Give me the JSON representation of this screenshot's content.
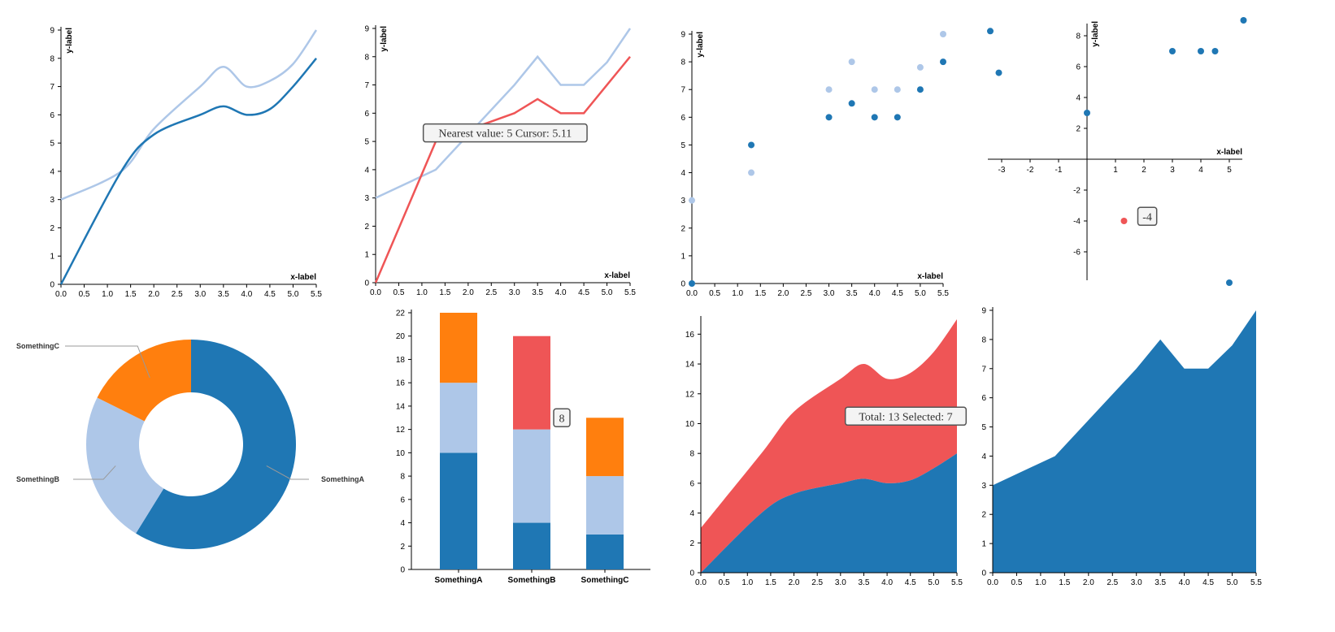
{
  "colors": {
    "dark": "#1f77b4",
    "light": "#aec7e8",
    "red": "#ef5556",
    "orange": "#ff7f0e",
    "grey": "#999999"
  },
  "chart_data": [
    {
      "type": "line",
      "xlabel": "x-label",
      "ylabel": "y-label",
      "xlim": [
        0,
        5.5
      ],
      "ylim": [
        0,
        9
      ],
      "xticks": [
        "0.0",
        "0.5",
        "1.0",
        "1.5",
        "2.0",
        "2.5",
        "3.0",
        "3.5",
        "4.0",
        "4.5",
        "5.0",
        "5.5"
      ],
      "yticks": [
        "0",
        "1",
        "2",
        "3",
        "4",
        "5",
        "6",
        "7",
        "8",
        "9"
      ],
      "curve": "smooth",
      "series": [
        {
          "x": [
            0,
            1.3,
            2.0,
            3.0,
            3.5,
            4.0,
            4.5,
            5.0,
            5.5
          ],
          "y": [
            3,
            4,
            5.5,
            7,
            7.7,
            7.0,
            7.2,
            7.8,
            9
          ],
          "color": "light"
        },
        {
          "x": [
            0,
            1.3,
            2.0,
            3.0,
            3.5,
            4.0,
            4.5,
            5.0,
            5.5
          ],
          "y": [
            0,
            4,
            5.3,
            6.0,
            6.3,
            6.0,
            6.2,
            7.0,
            8
          ],
          "color": "dark"
        }
      ]
    },
    {
      "type": "line",
      "xlabel": "x-label",
      "ylabel": "y-label",
      "xlim": [
        0,
        5.5
      ],
      "ylim": [
        0,
        9
      ],
      "xticks": [
        "0.0",
        "0.5",
        "1.0",
        "1.5",
        "2.0",
        "2.5",
        "3.0",
        "3.5",
        "4.0",
        "4.5",
        "5.0",
        "5.5"
      ],
      "yticks": [
        "0",
        "1",
        "2",
        "3",
        "4",
        "5",
        "6",
        "7",
        "8",
        "9"
      ],
      "curve": "linear",
      "series": [
        {
          "x": [
            0,
            1.3,
            3.0,
            3.5,
            4.0,
            4.5,
            5.0,
            5.5
          ],
          "y": [
            3,
            4,
            7,
            8,
            7,
            7,
            7.8,
            9
          ],
          "color": "light"
        },
        {
          "x": [
            0,
            1.3,
            3.0,
            3.5,
            4.0,
            4.5,
            5.0,
            5.5
          ],
          "y": [
            0,
            5,
            6,
            6.5,
            6,
            6,
            7,
            8
          ],
          "color": "red"
        }
      ],
      "tooltip": {
        "text": "Nearest value: 5 Cursor: 5.11",
        "x": 2.8,
        "y": 5.3
      }
    },
    {
      "type": "scatter",
      "xlabel": "x-label",
      "ylabel": "y-label",
      "xlim": [
        0,
        5.5
      ],
      "ylim": [
        0,
        9
      ],
      "xticks": [
        "0.0",
        "0.5",
        "1.0",
        "1.5",
        "2.0",
        "2.5",
        "3.0",
        "3.5",
        "4.0",
        "4.5",
        "5.0",
        "5.5"
      ],
      "yticks": [
        "0",
        "1",
        "2",
        "3",
        "4",
        "5",
        "6",
        "7",
        "8",
        "9"
      ],
      "series": [
        {
          "x": [
            0,
            1.3,
            3.0,
            3.5,
            4.0,
            4.5,
            5.0,
            5.5
          ],
          "y": [
            3,
            4,
            7,
            8,
            7,
            7,
            7.8,
            9
          ],
          "color": "light"
        },
        {
          "x": [
            0,
            1.3,
            3.0,
            3.5,
            4.0,
            4.5,
            5.0,
            5.5
          ],
          "y": [
            0,
            5,
            6,
            6.5,
            6,
            6,
            7,
            8
          ],
          "color": "dark"
        }
      ]
    },
    {
      "type": "scatter",
      "xlabel": "x-label",
      "ylabel": "y-label",
      "xlim": [
        -3.5,
        5.5
      ],
      "ylim": [
        -8,
        9
      ],
      "xticks": [
        "-3",
        "-2",
        "-1",
        "1",
        "2",
        "3",
        "4",
        "5"
      ],
      "yticks": [
        "-6",
        "-4",
        "-2",
        "2",
        "4",
        "6",
        "8"
      ],
      "series": [
        {
          "x": [
            -3.4,
            -3.1,
            0,
            3,
            4,
            4.5,
            5.5,
            5.0
          ],
          "y": [
            8.3,
            5.6,
            3,
            7,
            7,
            7,
            9,
            -8
          ],
          "color": "dark"
        },
        {
          "x": [
            1.3
          ],
          "y": [
            -4
          ],
          "color": "red"
        }
      ],
      "tooltip": {
        "text": "-4",
        "x": 1.9,
        "y": -3.7
      }
    },
    {
      "type": "pie",
      "donut": true,
      "categories": [
        "SomethingA",
        "SomethingB",
        "SomethingC"
      ],
      "values": [
        10,
        4,
        3
      ],
      "colors": [
        "dark",
        "light",
        "orange"
      ]
    },
    {
      "type": "bar",
      "stacked": true,
      "categories": [
        "SomethingA",
        "SomethingB",
        "SomethingC"
      ],
      "ylim": [
        0,
        22
      ],
      "yticks": [
        "0",
        "2",
        "4",
        "6",
        "8",
        "10",
        "12",
        "14",
        "16",
        "18",
        "20",
        "22"
      ],
      "series": [
        {
          "values": [
            10,
            4,
            3
          ],
          "color": "dark"
        },
        {
          "values": [
            6,
            8,
            5
          ],
          "color": "light"
        },
        {
          "values": [
            6,
            8,
            5
          ],
          "colors": [
            "orange",
            "red",
            "orange"
          ]
        }
      ],
      "tooltip": {
        "text": "8",
        "category": 1,
        "y": 13
      }
    },
    {
      "type": "area",
      "stacked": true,
      "xlim": [
        0,
        5.5
      ],
      "ylim": [
        0,
        17
      ],
      "xticks": [
        "0.0",
        "0.5",
        "1.0",
        "1.5",
        "2.0",
        "2.5",
        "3.0",
        "3.5",
        "4.0",
        "4.5",
        "5.0",
        "5.5"
      ],
      "yticks": [
        "0",
        "2",
        "4",
        "6",
        "8",
        "10",
        "12",
        "14",
        "16"
      ],
      "x": [
        0,
        1.3,
        2.0,
        3.0,
        3.5,
        4.0,
        4.5,
        5.0,
        5.5
      ],
      "series": [
        {
          "y": [
            0,
            4,
            5.3,
            6.0,
            6.3,
            6.0,
            6.2,
            7.0,
            8
          ],
          "color": "dark"
        },
        {
          "y": [
            3,
            4,
            5.5,
            7,
            7.7,
            7.0,
            7.2,
            7.8,
            9
          ],
          "color": "red"
        }
      ],
      "tooltip": {
        "text": "Total: 13 Selected: 7",
        "x": 4.4,
        "y": 10.5
      }
    },
    {
      "type": "area",
      "xlim": [
        0,
        5.5
      ],
      "ylim": [
        0,
        9
      ],
      "xticks": [
        "0.0",
        "0.5",
        "1.0",
        "1.5",
        "2.0",
        "2.5",
        "3.0",
        "3.5",
        "4.0",
        "4.5",
        "5.0",
        "5.5"
      ],
      "yticks": [
        "0",
        "1",
        "2",
        "3",
        "4",
        "5",
        "6",
        "7",
        "8",
        "9"
      ],
      "x": [
        0,
        1.3,
        3.0,
        3.5,
        4.0,
        4.5,
        5.0,
        5.5
      ],
      "series": [
        {
          "y": [
            3,
            4,
            7,
            8,
            7,
            7,
            7.8,
            9
          ],
          "color": "dark"
        }
      ]
    }
  ]
}
